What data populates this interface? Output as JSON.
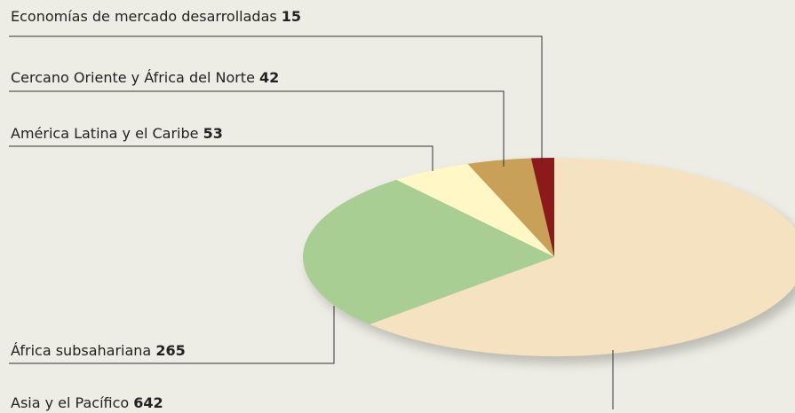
{
  "chart_data": {
    "type": "pie",
    "categories": [
      "Economías de mercado desarrolladas",
      "Cercano Oriente y África del Norte",
      "América Latina y el Caribe",
      "África subsahariana",
      "Asia y el Pacífico"
    ],
    "values": [
      15,
      42,
      53,
      265,
      642
    ],
    "colors": [
      "#8c1a1a",
      "#c9a057",
      "#fff8c6",
      "#a9ce93",
      "#f5e2c1"
    ]
  }
}
